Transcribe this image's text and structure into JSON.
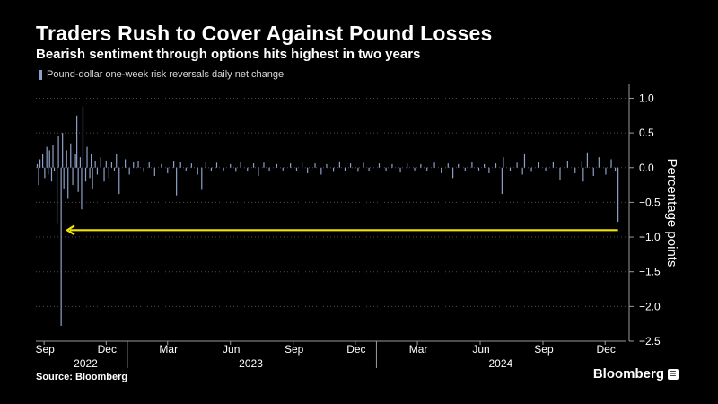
{
  "header": {
    "title": "Traders Rush to Cover Against Pound Losses",
    "subtitle": "Bearish sentiment through options hits highest in two years"
  },
  "footer": {
    "source": "Source: Bloomberg",
    "brand": "Bloomberg",
    "brand_mark_icon": "bloomberg-terminal-icon"
  },
  "colors": {
    "background": "#000000",
    "bars": "#8ca0c8",
    "arrow": "#f2e600",
    "grid": "#4a4a4a",
    "text": "#ffffff"
  },
  "chart_data": {
    "type": "bar",
    "legend": [
      "Pound-dollar one-week risk reversals daily net change"
    ],
    "legend_position": "top-left",
    "ylabel": "Percentage points",
    "ylim": [
      -2.5,
      1.2
    ],
    "yticks": [
      1.0,
      0.5,
      0.0,
      -0.5,
      -1.0,
      -1.5,
      -2.0,
      -2.5
    ],
    "ytick_labels": [
      "1.0",
      "0.5",
      "0.0",
      "−0.5",
      "−1.0",
      "−1.5",
      "−2.0",
      "−2.5"
    ],
    "grid": "horizontal dotted",
    "x_range": [
      "2022-08-20",
      "2024-12-31"
    ],
    "month_ticks": [
      {
        "date": "2022-09-01",
        "label": "Sep"
      },
      {
        "date": "2022-12-01",
        "label": "Dec"
      },
      {
        "date": "2023-03-01",
        "label": "Mar"
      },
      {
        "date": "2023-06-01",
        "label": "Jun"
      },
      {
        "date": "2023-09-01",
        "label": "Sep"
      },
      {
        "date": "2023-12-01",
        "label": "Dec"
      },
      {
        "date": "2024-03-01",
        "label": "Mar"
      },
      {
        "date": "2024-06-01",
        "label": "Jun"
      },
      {
        "date": "2024-09-01",
        "label": "Sep"
      },
      {
        "date": "2024-12-01",
        "label": "Dec"
      }
    ],
    "year_ticks": [
      {
        "date": "2022-11-01",
        "label": "2022"
      },
      {
        "date": "2023-07-01",
        "label": "2023"
      },
      {
        "date": "2024-07-01",
        "label": "2024"
      }
    ],
    "year_separators": [
      "2023-01-01",
      "2024-01-01"
    ],
    "annotation": {
      "type": "arrow",
      "y": -0.9,
      "from_date": "2024-12-20",
      "to_date": "2022-10-05"
    },
    "series": [
      {
        "name": "Pound-dollar one-week risk reversals daily net change",
        "points": [
          [
            "2022-08-22",
            0.05
          ],
          [
            "2022-08-24",
            -0.25
          ],
          [
            "2022-08-26",
            0.12
          ],
          [
            "2022-08-30",
            0.2
          ],
          [
            "2022-09-02",
            -0.15
          ],
          [
            "2022-09-05",
            0.3
          ],
          [
            "2022-09-07",
            -0.1
          ],
          [
            "2022-09-09",
            0.25
          ],
          [
            "2022-09-12",
            -0.2
          ],
          [
            "2022-09-14",
            0.32
          ],
          [
            "2022-09-16",
            -0.05
          ],
          [
            "2022-09-20",
            -0.8
          ],
          [
            "2022-09-22",
            0.45
          ],
          [
            "2022-09-26",
            -2.28
          ],
          [
            "2022-09-28",
            0.5
          ],
          [
            "2022-09-30",
            -0.3
          ],
          [
            "2022-10-04",
            0.25
          ],
          [
            "2022-10-06",
            -0.45
          ],
          [
            "2022-10-10",
            0.35
          ],
          [
            "2022-10-13",
            -0.25
          ],
          [
            "2022-10-17",
            0.2
          ],
          [
            "2022-10-19",
            0.75
          ],
          [
            "2022-10-21",
            -0.35
          ],
          [
            "2022-10-24",
            0.15
          ],
          [
            "2022-10-26",
            -0.6
          ],
          [
            "2022-10-28",
            0.88
          ],
          [
            "2022-11-01",
            -0.2
          ],
          [
            "2022-11-03",
            0.3
          ],
          [
            "2022-11-07",
            -0.15
          ],
          [
            "2022-11-09",
            0.2
          ],
          [
            "2022-11-11",
            -0.3
          ],
          [
            "2022-11-15",
            0.1
          ],
          [
            "2022-11-18",
            -0.1
          ],
          [
            "2022-11-23",
            0.15
          ],
          [
            "2022-11-28",
            -0.2
          ],
          [
            "2022-12-01",
            0.1
          ],
          [
            "2022-12-05",
            -0.15
          ],
          [
            "2022-12-09",
            0.08
          ],
          [
            "2022-12-13",
            -0.05
          ],
          [
            "2022-12-16",
            0.2
          ],
          [
            "2022-12-20",
            -0.38
          ],
          [
            "2022-12-29",
            0.12
          ],
          [
            "2023-01-04",
            -0.1
          ],
          [
            "2023-01-10",
            0.08
          ],
          [
            "2023-01-17",
            0.1
          ],
          [
            "2023-01-25",
            -0.06
          ],
          [
            "2023-02-02",
            0.08
          ],
          [
            "2023-02-10",
            -0.12
          ],
          [
            "2023-02-20",
            0.05
          ],
          [
            "2023-03-01",
            -0.08
          ],
          [
            "2023-03-10",
            0.1
          ],
          [
            "2023-03-14",
            -0.4
          ],
          [
            "2023-03-20",
            0.08
          ],
          [
            "2023-03-28",
            -0.05
          ],
          [
            "2023-04-05",
            0.06
          ],
          [
            "2023-04-14",
            -0.1
          ],
          [
            "2023-04-20",
            -0.32
          ],
          [
            "2023-04-26",
            0.08
          ],
          [
            "2023-05-04",
            -0.05
          ],
          [
            "2023-05-12",
            0.07
          ],
          [
            "2023-05-22",
            -0.04
          ],
          [
            "2023-06-01",
            0.05
          ],
          [
            "2023-06-09",
            -0.06
          ],
          [
            "2023-06-16",
            0.08
          ],
          [
            "2023-06-26",
            -0.05
          ],
          [
            "2023-07-05",
            0.06
          ],
          [
            "2023-07-12",
            -0.12
          ],
          [
            "2023-07-20",
            0.07
          ],
          [
            "2023-07-28",
            -0.05
          ],
          [
            "2023-08-08",
            0.05
          ],
          [
            "2023-08-17",
            -0.04
          ],
          [
            "2023-08-28",
            0.06
          ],
          [
            "2023-09-06",
            -0.05
          ],
          [
            "2023-09-14",
            0.08
          ],
          [
            "2023-09-22",
            -0.08
          ],
          [
            "2023-10-03",
            0.06
          ],
          [
            "2023-10-12",
            -0.1
          ],
          [
            "2023-10-20",
            0.05
          ],
          [
            "2023-10-30",
            -0.06
          ],
          [
            "2023-11-08",
            0.09
          ],
          [
            "2023-11-16",
            -0.05
          ],
          [
            "2023-11-24",
            0.06
          ],
          [
            "2023-12-05",
            -0.06
          ],
          [
            "2023-12-13",
            0.07
          ],
          [
            "2023-12-21",
            -0.05
          ],
          [
            "2024-01-05",
            0.06
          ],
          [
            "2024-01-15",
            -0.05
          ],
          [
            "2024-01-24",
            0.05
          ],
          [
            "2024-02-05",
            -0.07
          ],
          [
            "2024-02-15",
            0.06
          ],
          [
            "2024-02-26",
            -0.04
          ],
          [
            "2024-03-06",
            0.05
          ],
          [
            "2024-03-15",
            -0.05
          ],
          [
            "2024-03-26",
            0.07
          ],
          [
            "2024-04-05",
            -0.08
          ],
          [
            "2024-04-15",
            0.06
          ],
          [
            "2024-04-22",
            -0.15
          ],
          [
            "2024-04-30",
            0.05
          ],
          [
            "2024-05-10",
            -0.05
          ],
          [
            "2024-05-20",
            0.08
          ],
          [
            "2024-05-30",
            -0.04
          ],
          [
            "2024-06-07",
            0.05
          ],
          [
            "2024-06-14",
            -0.08
          ],
          [
            "2024-06-24",
            0.06
          ],
          [
            "2024-07-03",
            -0.38
          ],
          [
            "2024-07-05",
            0.15
          ],
          [
            "2024-07-15",
            -0.05
          ],
          [
            "2024-07-25",
            0.07
          ],
          [
            "2024-08-02",
            -0.1
          ],
          [
            "2024-08-05",
            0.2
          ],
          [
            "2024-08-15",
            -0.06
          ],
          [
            "2024-08-26",
            0.08
          ],
          [
            "2024-09-05",
            -0.05
          ],
          [
            "2024-09-16",
            0.08
          ],
          [
            "2024-09-26",
            -0.18
          ],
          [
            "2024-10-07",
            0.1
          ],
          [
            "2024-10-18",
            -0.08
          ],
          [
            "2024-10-28",
            0.1
          ],
          [
            "2024-10-30",
            -0.2
          ],
          [
            "2024-11-05",
            0.22
          ],
          [
            "2024-11-14",
            -0.12
          ],
          [
            "2024-11-22",
            0.15
          ],
          [
            "2024-12-02",
            -0.1
          ],
          [
            "2024-12-10",
            0.12
          ],
          [
            "2024-12-16",
            -0.05
          ],
          [
            "2024-12-20",
            -0.78
          ]
        ]
      }
    ]
  }
}
